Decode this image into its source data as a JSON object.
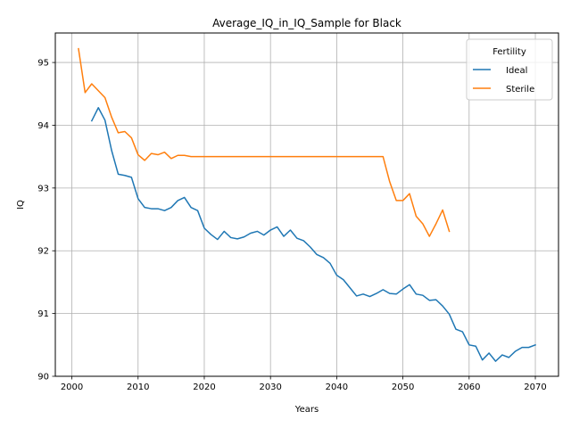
{
  "chart_data": {
    "type": "line",
    "title": "Average_IQ_in_IQ_Sample for Black",
    "xlabel": "Years",
    "ylabel": "IQ",
    "xlim": [
      1997.5,
      2073.5
    ],
    "ylim": [
      90.0,
      95.47
    ],
    "xticks": [
      2000,
      2010,
      2020,
      2030,
      2040,
      2050,
      2060,
      2070
    ],
    "yticks": [
      90,
      91,
      92,
      93,
      94,
      95
    ],
    "grid": true,
    "legend": {
      "title": "Fertility",
      "placement": "top-right"
    },
    "series": [
      {
        "name": "Ideal",
        "color": "#1f77b4",
        "x": [
          2003,
          2004,
          2005,
          2006,
          2007,
          2008,
          2009,
          2010,
          2011,
          2012,
          2013,
          2014,
          2015,
          2016,
          2017,
          2018,
          2019,
          2020,
          2021,
          2022,
          2023,
          2024,
          2025,
          2026,
          2027,
          2028,
          2029,
          2030,
          2031,
          2032,
          2033,
          2034,
          2035,
          2036,
          2037,
          2038,
          2039,
          2040,
          2041,
          2042,
          2043,
          2044,
          2045,
          2046,
          2047,
          2048,
          2049,
          2050,
          2051,
          2052,
          2053,
          2054,
          2055,
          2056,
          2057,
          2058,
          2059,
          2060,
          2061,
          2062,
          2063,
          2064,
          2065,
          2066,
          2067,
          2068,
          2069,
          2070
        ],
        "y": [
          94.07,
          94.28,
          94.08,
          93.6,
          93.22,
          93.2,
          93.17,
          92.83,
          92.69,
          92.67,
          92.67,
          92.64,
          92.69,
          92.8,
          92.85,
          92.69,
          92.64,
          92.36,
          92.26,
          92.18,
          92.31,
          92.21,
          92.19,
          92.22,
          92.28,
          92.31,
          92.25,
          92.33,
          92.38,
          92.23,
          92.33,
          92.2,
          92.16,
          92.06,
          91.94,
          91.89,
          91.8,
          91.61,
          91.54,
          91.41,
          91.28,
          91.31,
          91.27,
          91.32,
          91.38,
          91.32,
          91.31,
          91.39,
          91.46,
          91.31,
          91.29,
          91.21,
          91.22,
          91.12,
          90.99,
          90.75,
          90.71,
          90.5,
          90.48,
          90.26,
          90.37,
          90.24,
          90.34,
          90.3,
          90.4,
          90.46,
          90.46,
          90.5
        ]
      },
      {
        "name": "Sterile",
        "color": "#ff7f0e",
        "x": [
          2001,
          2002,
          2003,
          2004,
          2005,
          2006,
          2007,
          2008,
          2009,
          2010,
          2011,
          2012,
          2013,
          2014,
          2015,
          2016,
          2017,
          2018,
          2019,
          2020,
          2021,
          2022,
          2023,
          2024,
          2025,
          2026,
          2027,
          2028,
          2029,
          2030,
          2031,
          2032,
          2033,
          2034,
          2035,
          2036,
          2037,
          2038,
          2039,
          2040,
          2041,
          2042,
          2043,
          2044,
          2045,
          2046,
          2047,
          2048,
          2049,
          2050,
          2051,
          2052,
          2053,
          2054,
          2055,
          2056,
          2057
        ],
        "y": [
          95.22,
          94.52,
          94.66,
          94.55,
          94.44,
          94.13,
          93.88,
          93.9,
          93.8,
          93.53,
          93.44,
          93.55,
          93.53,
          93.57,
          93.47,
          93.52,
          93.52,
          93.5,
          93.5,
          93.5,
          93.5,
          93.5,
          93.5,
          93.5,
          93.5,
          93.5,
          93.5,
          93.5,
          93.5,
          93.5,
          93.5,
          93.5,
          93.5,
          93.5,
          93.5,
          93.5,
          93.5,
          93.5,
          93.5,
          93.5,
          93.5,
          93.5,
          93.5,
          93.5,
          93.5,
          93.5,
          93.5,
          93.1,
          92.8,
          92.8,
          92.91,
          92.55,
          92.43,
          92.23,
          92.43,
          92.65,
          92.31
        ]
      }
    ]
  }
}
